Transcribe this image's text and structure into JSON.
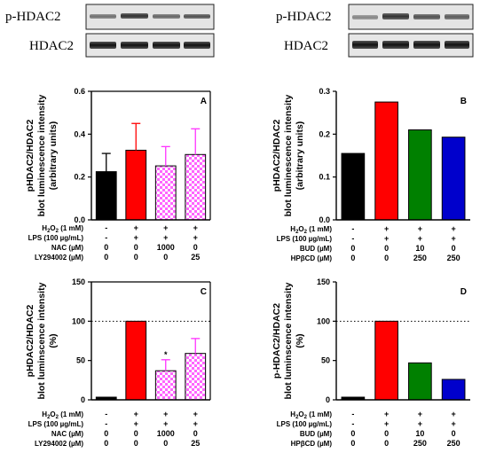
{
  "blots": [
    {
      "rows": [
        "p-HDAC2",
        "HDAC2"
      ]
    },
    {
      "rows": [
        "p-HDAC2",
        "HDAC2"
      ]
    }
  ],
  "colors": {
    "black": "#000000",
    "red": "#ff0000",
    "pink": "#ff66ff",
    "green": "#008000",
    "blue": "#0000cc"
  },
  "chart_data": [
    {
      "panel": "A",
      "type": "bar",
      "ylabel": [
        "pHDAC2/HDAC2",
        "blot luminescence intensity",
        "(arbitrary units)"
      ],
      "ylim": [
        0,
        0.6
      ],
      "yticks": [
        "0.0",
        "0.2",
        "0.4",
        "0.6"
      ],
      "values": [
        0.225,
        0.325,
        0.252,
        0.305
      ],
      "errors": [
        0.085,
        0.125,
        0.09,
        0.12
      ],
      "fills": [
        "black",
        "red",
        "pink-check",
        "pink-check"
      ],
      "stars": [
        "",
        "",
        "",
        ""
      ],
      "ref_line": null,
      "conditions": [
        {
          "label": "H2O2 (1 mM)",
          "values": [
            "-",
            "+",
            "+",
            "+"
          ]
        },
        {
          "label": "LPS (100 µg/mL)",
          "values": [
            "-",
            "+",
            "+",
            "+"
          ]
        },
        {
          "label": "NAC (µM)",
          "values": [
            "0",
            "0",
            "1000",
            "0"
          ]
        },
        {
          "label": "LY294002 (µM)",
          "values": [
            "0",
            "0",
            "0",
            "25"
          ]
        }
      ]
    },
    {
      "panel": "B",
      "type": "bar",
      "ylabel": [
        "pHDAC2/HDAC2",
        "blot luminescence intensity",
        "(arbitrary units)"
      ],
      "ylim": [
        0,
        0.3
      ],
      "yticks": [
        "0.0",
        "0.1",
        "0.2",
        "0.3"
      ],
      "values": [
        0.155,
        0.275,
        0.21,
        0.193
      ],
      "errors": [
        null,
        null,
        null,
        null
      ],
      "fills": [
        "black",
        "red",
        "green",
        "blue"
      ],
      "stars": [
        "",
        "",
        "",
        ""
      ],
      "ref_line": null,
      "conditions": [
        {
          "label": "H2O2 (1 mM)",
          "values": [
            "-",
            "+",
            "+",
            "+"
          ]
        },
        {
          "label": "LPS (100 µg/mL)",
          "values": [
            "-",
            "+",
            "+",
            "+"
          ]
        },
        {
          "label": "BUD (µM)",
          "values": [
            "0",
            "0",
            "10",
            "0"
          ]
        },
        {
          "label": "HPβCD (µM)",
          "values": [
            "0",
            "0",
            "250",
            "250"
          ]
        }
      ]
    },
    {
      "panel": "C",
      "type": "bar",
      "ylabel": [
        "pHDAC2/HDAC2",
        "blot luminscence intensity",
        "(%)"
      ],
      "ylim": [
        0,
        150
      ],
      "yticks": [
        "0",
        "50",
        "100",
        "150"
      ],
      "values": [
        0,
        100,
        37,
        59
      ],
      "errors": [
        null,
        null,
        14,
        19
      ],
      "fills": [
        "black",
        "red",
        "pink-check",
        "pink-check"
      ],
      "stars": [
        "",
        "",
        "*",
        ""
      ],
      "ref_line": 100,
      "conditions": [
        {
          "label": "H2O2 (1 mM)",
          "values": [
            "-",
            "+",
            "+",
            "+"
          ]
        },
        {
          "label": "LPS (100 µg/mL)",
          "values": [
            "-",
            "+",
            "+",
            "+"
          ]
        },
        {
          "label": "NAC (µM)",
          "values": [
            "0",
            "0",
            "1000",
            "0"
          ]
        },
        {
          "label": "LY294002 (µM)",
          "values": [
            "0",
            "0",
            "0",
            "25"
          ]
        }
      ]
    },
    {
      "panel": "D",
      "type": "bar",
      "ylabel": [
        "p-HDAC2/HDAC2",
        "blot luminscence intensity",
        "(%)"
      ],
      "ylim": [
        0,
        150
      ],
      "yticks": [
        "0",
        "50",
        "100",
        "150"
      ],
      "values": [
        0,
        100,
        47,
        26
      ],
      "errors": [
        null,
        null,
        null,
        null
      ],
      "fills": [
        "black",
        "red",
        "green",
        "blue"
      ],
      "stars": [
        "",
        "",
        "",
        ""
      ],
      "ref_line": 100,
      "conditions": [
        {
          "label": "H2O2 (1 mM)",
          "values": [
            "-",
            "+",
            "+",
            "+"
          ]
        },
        {
          "label": "LPS (100 µg/mL)",
          "values": [
            "-",
            "+",
            "+",
            "+"
          ]
        },
        {
          "label": "BUD (µM)",
          "values": [
            "0",
            "0",
            "10",
            "0"
          ]
        },
        {
          "label": "HPβCD (µM)",
          "values": [
            "0",
            "0",
            "250",
            "250"
          ]
        }
      ]
    }
  ]
}
